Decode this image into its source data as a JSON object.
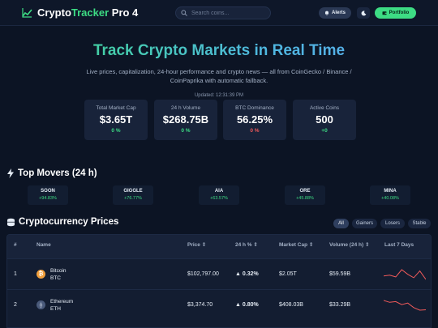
{
  "header": {
    "logo_part1": "Crypto",
    "logo_part2": "Tracker",
    "logo_part3": " Pro 4",
    "search_placeholder": "Search coins...",
    "alerts_label": "Alerts",
    "portfolio_label": "Portfolio",
    "icons": {
      "logo": "chart-line-icon",
      "search": "search-icon",
      "alerts": "bell-icon",
      "theme": "moon-icon",
      "portfolio": "wallet-icon"
    }
  },
  "hero": {
    "title": "Track Crypto Markets in Real Time",
    "subtitle": "Live prices, capitalization, 24-hour performance and crypto news — all from CoinGecko / Binance / CoinPaprika with automatic fallback.",
    "updated": "Updated: 12:31:39 PM"
  },
  "stats": [
    {
      "label": "Total Market Cap",
      "value": "$3.65T",
      "change": "0 %",
      "trend": "up"
    },
    {
      "label": "24 h Volume",
      "value": "$268.75B",
      "change": "0 %",
      "trend": "up"
    },
    {
      "label": "BTC Dominance",
      "value": "56.25%",
      "change": "0 %",
      "trend": "down"
    },
    {
      "label": "Active Coins",
      "value": "500",
      "change": "+0",
      "trend": "up"
    }
  ],
  "movers": {
    "title": "Top Movers (24 h)",
    "icon": "lightning-icon",
    "items": [
      {
        "symbol": "SOON",
        "change": "+94.83%"
      },
      {
        "symbol": "GIGGLE",
        "change": "+76.77%"
      },
      {
        "symbol": "AIA",
        "change": "+63.57%"
      },
      {
        "symbol": "ORE",
        "change": "+45.88%"
      },
      {
        "symbol": "MINA",
        "change": "+40.08%"
      }
    ]
  },
  "prices": {
    "title": "Cryptocurrency Prices",
    "icon": "coins-stack-icon",
    "filters": [
      {
        "label": "All",
        "active": true
      },
      {
        "label": "Gainers",
        "active": false
      },
      {
        "label": "Losers",
        "active": false
      },
      {
        "label": "Stable",
        "active": false
      }
    ],
    "columns": [
      "#",
      "Name",
      "Price ⇕",
      "24 h % ⇕",
      "Market Cap ⇕",
      "Volume (24 h) ⇕",
      "Last 7 Days"
    ],
    "rows": [
      {
        "rank": "1",
        "name": "Bitcoin",
        "symbol": "BTC",
        "icon": "bitcoin-icon",
        "icon_color": "#f2a03d",
        "price": "$102,797.00",
        "change": "▲ 0.32%",
        "market_cap": "$2.05T",
        "volume": "$59.59B",
        "sparkline": [
          5,
          5.2,
          4.8,
          6.5,
          5.4,
          4.6,
          6.2,
          4.2
        ]
      },
      {
        "rank": "2",
        "name": "Ethereum",
        "symbol": "ETH",
        "icon": "ethereum-icon",
        "icon_color": "#4a5a7a",
        "price": "$3,374.70",
        "change": "▲ 0.80%",
        "market_cap": "$408.03B",
        "volume": "$33.29B",
        "sparkline": [
          6.5,
          6.0,
          6.2,
          5.4,
          5.8,
          4.6,
          3.9,
          4.0
        ]
      }
    ]
  },
  "colors": {
    "accent": "#3ddc84",
    "negative": "#f05a5a",
    "background": "#0c1424",
    "sparkline": "#f05a5a"
  }
}
